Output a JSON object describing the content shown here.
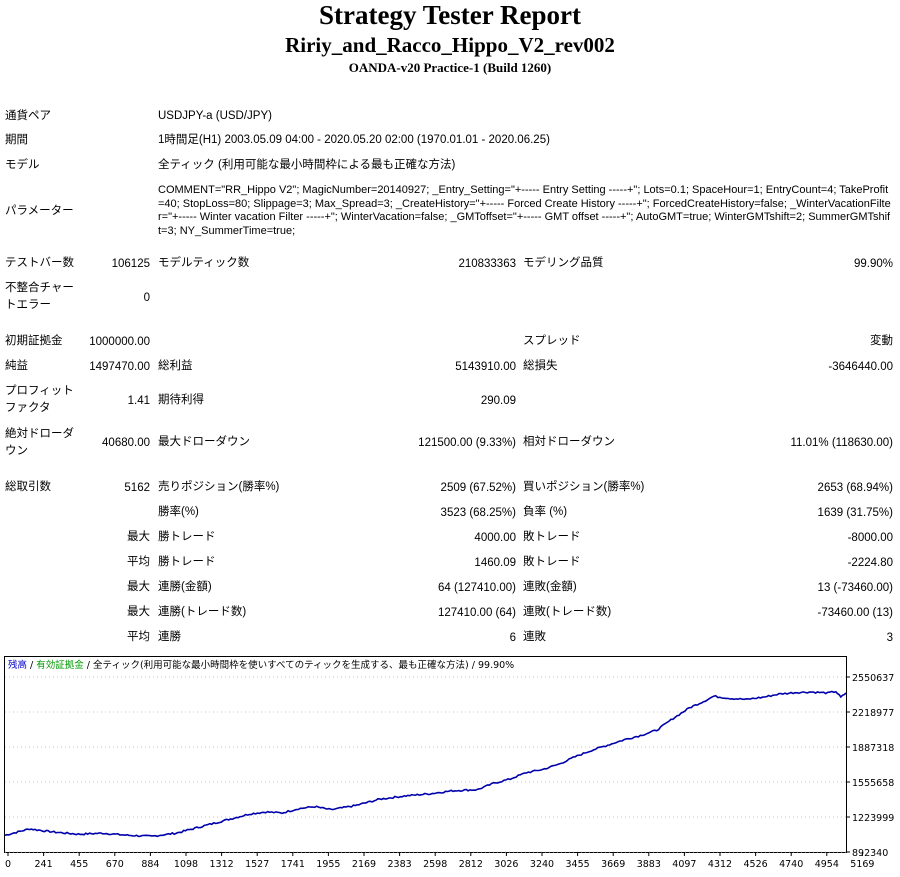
{
  "header": {
    "title": "Strategy Tester Report",
    "ea_name": "Ririy_and_Racco_Hippo_V2_rev002",
    "server": "OANDA-v20 Practice-1 (Build 1260)"
  },
  "info": {
    "symbol_label": "通貨ペア",
    "symbol_value": "USDJPY-a (USD/JPY)",
    "period_label": "期間",
    "period_value": "1時間足(H1) 2003.05.09 04:00 - 2020.05.20 02:00 (1970.01.01 - 2020.06.25)",
    "model_label": "モデル",
    "model_value": "全ティック (利用可能な最小時間枠による最も正確な方法)",
    "params_label": "パラメーター",
    "params_value": "COMMENT=\"RR_Hippo V2\"; MagicNumber=20140927; _Entry_Setting=\"+----- Entry Setting -----+\"; Lots=0.1; SpaceHour=1; EntryCount=4; TakeProfit=40; StopLoss=80; Slippage=3; Max_Spread=3; _CreateHistory=\"+----- Forced Create History -----+\"; ForcedCreateHistory=false; _WinterVacationFilter=\"+----- Winter vacation Filter -----+\"; WinterVacation=false; _GMToffset=\"+----- GMT offset -----+\"; AutoGMT=true; WinterGMTshift=2; SummerGMTshift=3; NY_SummerTime=true;"
  },
  "bars": {
    "test_bars_label": "テストバー数",
    "test_bars_value": "106125",
    "ticks_label": "モデルティック数",
    "ticks_value": "210833363",
    "quality_label": "モデリング品質",
    "quality_value": "99.90%",
    "mismatch_label_1": "不整合チャー",
    "mismatch_label_2": "トエラー",
    "mismatch_value": "0"
  },
  "results": {
    "deposit_label": "初期証拠金",
    "deposit_value": "1000000.00",
    "spread_label": "スプレッド",
    "spread_value": "変動",
    "net_label": "純益",
    "net_value": "1497470.00",
    "gross_profit_label": "総利益",
    "gross_profit_value": "5143910.00",
    "gross_loss_label": "総損失",
    "gross_loss_value": "-3646440.00",
    "pf_label_1": "プロフィット",
    "pf_label_2": "ファクタ",
    "pf_value": "1.41",
    "expected_label": "期待利得",
    "expected_value": "290.09",
    "abs_dd_label_1": "絶対ドローダ",
    "abs_dd_label_2": "ウン",
    "abs_dd_value": "40680.00",
    "max_dd_label": "最大ドローダウン",
    "max_dd_value": "121500.00 (9.33%)",
    "rel_dd_label": "相対ドローダウン",
    "rel_dd_value": "11.01% (118630.00)",
    "trades_label": "総取引数",
    "trades_value": "5162",
    "short_label": "売りポジション(勝率%)",
    "short_value": "2509 (67.52%)",
    "long_label": "買いポジション(勝率%)",
    "long_value": "2653 (68.94%)",
    "win_pct_label": "勝率(%)",
    "win_pct_value": "3523 (68.25%)",
    "loss_pct_label": "負率 (%)",
    "loss_pct_value": "1639 (31.75%)",
    "max_label": "最大",
    "avg_label": "平均",
    "win_trade_label": "勝トレード",
    "loss_trade_label": "敗トレード",
    "max_win_value": "4000.00",
    "max_loss_value": "-8000.00",
    "avg_win_value": "1460.09",
    "avg_loss_value": "-2224.80",
    "cons_win_money_label": "連勝(金額)",
    "cons_loss_money_label": "連敗(金額)",
    "cons_win_money_value": "64 (127410.00)",
    "cons_loss_money_value": "13 (-73460.00)",
    "cons_win_count_label": "連勝(トレード数)",
    "cons_loss_count_label": "連敗(トレード数)",
    "cons_win_count_value": "127410.00 (64)",
    "cons_loss_count_value": "-73460.00 (13)",
    "avg_cons_win_label": "連勝",
    "avg_cons_win_value": "6",
    "avg_cons_loss_label": "連敗",
    "avg_cons_loss_value": "3"
  },
  "chart_data": {
    "type": "line",
    "legend_balance": "残高",
    "legend_sep": " / ",
    "legend_equity": "有効証拠金",
    "legend_rest": " / 全ティック(利用可能な最小時間枠を使いすべてのティックを生成する、最も正確な方法) / 99.90%",
    "x_ticks": [
      "0",
      "241",
      "455",
      "670",
      "884",
      "1098",
      "1312",
      "1527",
      "1741",
      "1955",
      "2169",
      "2383",
      "2598",
      "2812",
      "3026",
      "3240",
      "3455",
      "3669",
      "3883",
      "4097",
      "4312",
      "4526",
      "4740",
      "4954",
      "5169"
    ],
    "y_ticks": [
      "2550637",
      "2218977",
      "1887318",
      "1555658",
      "1223999",
      "892340"
    ],
    "ylim": [
      892340,
      2550637
    ],
    "xlim": [
      0,
      5162
    ],
    "series": [
      {
        "x": [
          0,
          150,
          300,
          450,
          600,
          750,
          900,
          1050,
          1200,
          1350,
          1500,
          1600,
          1700,
          1800,
          1900,
          2000,
          2150,
          2300,
          2450,
          2600,
          2750,
          2900,
          3000,
          3100,
          3200,
          3300,
          3400,
          3500,
          3600,
          3700,
          3800,
          3900,
          4000,
          4100,
          4200,
          4300,
          4350,
          4450,
          4550,
          4650,
          4750,
          4850,
          4950,
          5050,
          5100,
          5130,
          5162
        ],
        "values": [
          1050000,
          1110000,
          1080000,
          1060000,
          1070000,
          1050000,
          1040000,
          1070000,
          1130000,
          1190000,
          1250000,
          1270000,
          1260000,
          1300000,
          1320000,
          1290000,
          1330000,
          1390000,
          1420000,
          1440000,
          1470000,
          1480000,
          1540000,
          1580000,
          1640000,
          1670000,
          1720000,
          1790000,
          1850000,
          1900000,
          1950000,
          1990000,
          2040000,
          2150000,
          2250000,
          2320000,
          2360000,
          2340000,
          2330000,
          2350000,
          2380000,
          2395000,
          2400000,
          2390000,
          2405000,
          2350000,
          2390000
        ],
        "color": "#0000aa"
      }
    ]
  }
}
